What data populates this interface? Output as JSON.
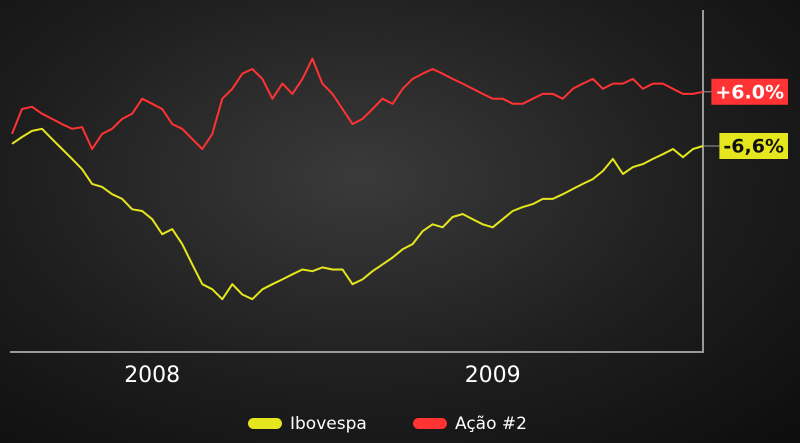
{
  "chart_data": {
    "type": "line",
    "categories": [
      null,
      null,
      null,
      null,
      null,
      null,
      null,
      null,
      null,
      null,
      null,
      null,
      null,
      null,
      "2008",
      null,
      null,
      null,
      null,
      null,
      null,
      null,
      null,
      null,
      null,
      null,
      null,
      null,
      null,
      null,
      null,
      null,
      null,
      null,
      null,
      null,
      null,
      null,
      null,
      null,
      null,
      null,
      null,
      null,
      null,
      null,
      null,
      null,
      "2009",
      null,
      null,
      null,
      null,
      null,
      null,
      null,
      null,
      null,
      null,
      null,
      null,
      null,
      null,
      null,
      null,
      null,
      null,
      null,
      null,
      null
    ],
    "ylim": [
      -54,
      25
    ],
    "series": [
      {
        "name": "Ibovespa",
        "color": "#e6e61e",
        "values": [
          -6.1,
          -4.5,
          -3.1,
          -2.6,
          -5.0,
          -7.3,
          -9.6,
          -12.0,
          -15.4,
          -16.1,
          -17.8,
          -18.9,
          -21.3,
          -21.7,
          -23.6,
          -27.1,
          -25.9,
          -29.4,
          -34.1,
          -38.7,
          -39.9,
          -42.2,
          -38.7,
          -41.1,
          -42.2,
          -39.9,
          -38.7,
          -37.6,
          -36.4,
          -35.3,
          -35.7,
          -34.8,
          -35.3,
          -35.3,
          -38.7,
          -37.6,
          -35.7,
          -34.1,
          -32.5,
          -30.6,
          -29.4,
          -26.4,
          -24.8,
          -25.5,
          -23.1,
          -22.4,
          -23.6,
          -24.8,
          -25.5,
          -23.6,
          -21.7,
          -20.8,
          -20.1,
          -18.9,
          -18.9,
          -17.8,
          -16.6,
          -15.4,
          -14.3,
          -12.4,
          -9.6,
          -13.1,
          -11.5,
          -10.8,
          -9.6,
          -8.5,
          -7.3,
          -9.2,
          -7.3,
          -6.6
        ],
        "value_labels": [
          null,
          null,
          null,
          null,
          null,
          null,
          null,
          null,
          null,
          null,
          null,
          null,
          null,
          null,
          null,
          null,
          null,
          null,
          null,
          null,
          null,
          null,
          null,
          null,
          null,
          null,
          null,
          null,
          null,
          null,
          null,
          null,
          null,
          null,
          null,
          null,
          null,
          null,
          null,
          null,
          null,
          null,
          null,
          null,
          null,
          null,
          null,
          null,
          null,
          null,
          null,
          null,
          null,
          null,
          null,
          null,
          null,
          null,
          null,
          null,
          null,
          null,
          null,
          null,
          null,
          null,
          null,
          null,
          null,
          "-6,6%"
        ]
      },
      {
        "name": "Ação #2",
        "color": "#ff3333",
        "values": [
          -3.8,
          2.0,
          2.5,
          0.9,
          -0.3,
          -1.5,
          -2.6,
          -2.2,
          -7.3,
          -3.8,
          -2.6,
          -0.3,
          0.9,
          4.4,
          3.2,
          2.0,
          -1.5,
          -2.6,
          -5.0,
          -7.3,
          -3.8,
          4.4,
          6.7,
          10.2,
          11.3,
          9.0,
          4.4,
          7.9,
          5.5,
          9.0,
          13.7,
          7.9,
          5.5,
          2.0,
          -1.5,
          -0.3,
          2.0,
          4.4,
          3.2,
          6.7,
          9.0,
          10.2,
          11.3,
          10.2,
          9.0,
          7.9,
          6.7,
          5.5,
          4.4,
          4.4,
          3.2,
          3.2,
          4.4,
          5.5,
          5.5,
          4.4,
          6.7,
          7.9,
          9.0,
          6.7,
          7.9,
          7.9,
          9.0,
          6.7,
          7.9,
          7.9,
          6.7,
          5.5,
          5.5,
          6.0
        ],
        "value_labels": [
          null,
          null,
          null,
          null,
          null,
          null,
          null,
          null,
          null,
          null,
          null,
          null,
          null,
          null,
          null,
          null,
          null,
          null,
          null,
          null,
          null,
          null,
          null,
          null,
          null,
          null,
          null,
          null,
          null,
          null,
          null,
          null,
          null,
          null,
          null,
          null,
          null,
          null,
          null,
          null,
          null,
          null,
          null,
          null,
          null,
          null,
          null,
          null,
          null,
          null,
          null,
          null,
          null,
          null,
          null,
          null,
          null,
          null,
          null,
          null,
          null,
          null,
          null,
          null,
          null,
          null,
          null,
          null,
          null,
          "+6.0%"
        ]
      }
    ]
  }
}
